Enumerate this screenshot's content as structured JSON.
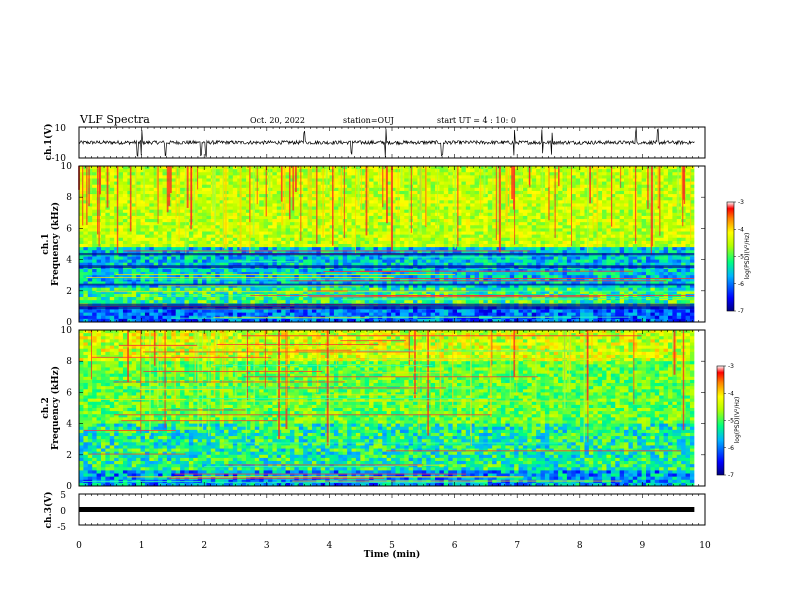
{
  "header": {
    "title": "VLF Spectra",
    "date": "Oct. 20, 2022",
    "station": "station=OUJ",
    "start": "start UT =  4 : 10: 0"
  },
  "chart_data": [
    {
      "type": "line",
      "ylabel": "ch.1(V)",
      "ylim": [
        -10,
        10
      ],
      "yticks": [
        "10",
        "-10"
      ],
      "xlim": [
        0,
        9.83
      ],
      "baseline": 0,
      "noise_amplitude": 1.2,
      "spikes": [
        0.93,
        1.0,
        1.38,
        1.95,
        2.03,
        3.6,
        4.35,
        4.9,
        5.8,
        6.95,
        7.4,
        7.55,
        8.9,
        9.25
      ]
    },
    {
      "type": "heatmap",
      "ylabel_line1": "ch.1",
      "ylabel_line2": "Frequency (kHz)",
      "ylim": [
        0,
        10
      ],
      "yticks": [
        "0",
        "2",
        "4",
        "6",
        "8",
        "10"
      ],
      "xlim": [
        0,
        10
      ],
      "data_end": 9.83,
      "colorbar": {
        "label": "log(PSD)(V²/Hz)",
        "range": [
          -7,
          -3
        ],
        "ticks": [
          "-3",
          "-4",
          "-5",
          "-6",
          "-7"
        ]
      }
    },
    {
      "type": "heatmap",
      "ylabel_line1": "ch.2",
      "ylabel_line2": "Frequency (kHz)",
      "ylim": [
        0,
        10
      ],
      "yticks": [
        "0",
        "2",
        "4",
        "6",
        "8",
        "10"
      ],
      "xlim": [
        0,
        10
      ],
      "data_end": 9.83,
      "colorbar": {
        "label": "log(PSD)(V²/Hz)",
        "range": [
          -7,
          -3
        ],
        "ticks": [
          "-3",
          "-4",
          "-5",
          "-6",
          "-7"
        ]
      }
    },
    {
      "type": "line",
      "ylabel": "ch.3(V)",
      "ylim": [
        -5,
        5
      ],
      "yticks": [
        "5",
        "0",
        "-5"
      ],
      "xlim": [
        0,
        9.83
      ],
      "baseline": 0
    }
  ],
  "xaxis": {
    "label": "Time (min)",
    "ticks": [
      "0",
      "1",
      "2",
      "3",
      "4",
      "5",
      "6",
      "7",
      "8",
      "9",
      "10"
    ],
    "range": [
      0,
      10
    ]
  }
}
